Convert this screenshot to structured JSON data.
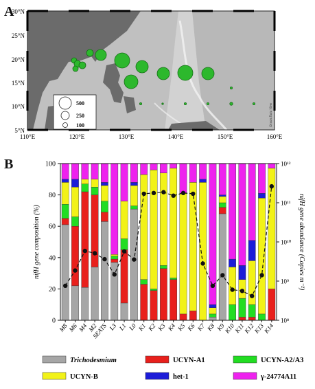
{
  "panels": {
    "a_label": "A",
    "b_label": "B"
  },
  "map": {
    "lat_labels": [
      "30°N",
      "25°N",
      "20°N",
      "15°N",
      "10°N",
      "5°N"
    ],
    "lon_labels": [
      "110°E",
      "120°E",
      "130°E",
      "140°E",
      "150°E",
      "160°E"
    ],
    "credit": "Ocean Data View",
    "legend_values": [
      "500",
      "250",
      "100"
    ],
    "colors": {
      "marker": "#2db82d",
      "marker_edge": "#166e16",
      "land": "#6b6b6b",
      "ocean": "#d6d6d6"
    }
  },
  "chart_data": {
    "type": "bar",
    "ylabel": "nifH gene composition (%)",
    "y2label": "nifH gene abundance (Copies m⁻²)",
    "ylim": [
      0,
      100
    ],
    "yticks": [
      "0",
      "20",
      "40",
      "60",
      "80",
      "100"
    ],
    "y2ticks": [
      "10⁸",
      "10⁹",
      "10¹⁰",
      "10¹¹",
      "10¹²"
    ],
    "y2_log_range": [
      8,
      12
    ],
    "categories": [
      "M8",
      "M6",
      "M4",
      "M2",
      "SEATS",
      "L3",
      "L1",
      "L0",
      "K1",
      "K2",
      "K3",
      "K4",
      "K5",
      "K6",
      "K7",
      "K8",
      "K9",
      "K10",
      "K11",
      "K12",
      "K13",
      "K14"
    ],
    "series": [
      {
        "name": "Trichodesmium",
        "color": "#a6a6a6",
        "values": [
          61,
          22,
          21,
          34,
          63,
          37,
          11,
          71,
          0,
          0,
          0,
          0,
          0,
          0,
          0,
          2,
          68,
          0,
          0,
          0,
          0,
          0
        ]
      },
      {
        "name": "UCYN-A1",
        "color": "#e8201c",
        "values": [
          4,
          38,
          61,
          46,
          6,
          2,
          34,
          0,
          23,
          19,
          33,
          26,
          4,
          6,
          0,
          0,
          4,
          0,
          2,
          2,
          0,
          20
        ]
      },
      {
        "name": "UCYN-A2/A3",
        "color": "#22dd22",
        "values": [
          9,
          6,
          5,
          5,
          7,
          2,
          7,
          2,
          3,
          1,
          2,
          1,
          0,
          0,
          0,
          2,
          3,
          10,
          12,
          8,
          4,
          0
        ]
      },
      {
        "name": "UCYN-B",
        "color": "#f2f218",
        "values": [
          14,
          19,
          3,
          5,
          10,
          1,
          24,
          13,
          67,
          76,
          59,
          70,
          77,
          82,
          88,
          4,
          4,
          24,
          12,
          28,
          74,
          77
        ]
      },
      {
        "name": "het-1",
        "color": "#1c1cd8",
        "values": [
          2,
          5,
          0,
          0,
          2,
          0,
          0,
          2,
          0,
          0,
          0,
          0,
          0,
          0,
          2,
          2,
          1,
          5,
          9,
          13,
          3,
          0
        ]
      },
      {
        "name": "γ-24774A11",
        "color": "#ee22ee",
        "values": [
          10,
          10,
          10,
          10,
          12,
          58,
          24,
          12,
          7,
          4,
          6,
          3,
          19,
          12,
          10,
          90,
          20,
          61,
          65,
          49,
          19,
          3
        ]
      }
    ],
    "abundance_log": [
      8.88,
      9.27,
      9.77,
      9.71,
      9.56,
      9.17,
      9.76,
      9.55,
      11.23,
      11.25,
      11.27,
      11.18,
      11.25,
      11.23,
      9.45,
      8.88,
      9.15,
      8.78,
      8.75,
      8.62,
      9.15,
      11.42
    ],
    "legend": [
      {
        "label": "Trichodesmium",
        "color": "#a6a6a6",
        "italic": true
      },
      {
        "label": "UCYN-A1",
        "color": "#e8201c",
        "italic": false
      },
      {
        "label": "UCYN-A2/A3",
        "color": "#22dd22",
        "italic": false
      },
      {
        "label": "UCYN-B",
        "color": "#f2f218",
        "italic": false
      },
      {
        "label": "het-1",
        "color": "#1c1cd8",
        "italic": false
      },
      {
        "label": "γ-24774A11",
        "color": "#ee22ee",
        "italic": false
      }
    ]
  }
}
